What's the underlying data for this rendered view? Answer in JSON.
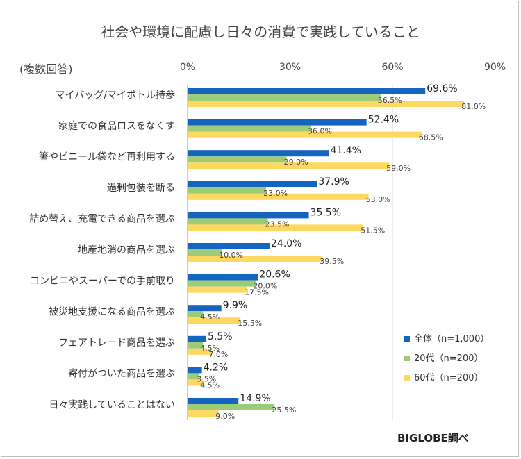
{
  "title": "社会や環境に配慮し日々の消費で実践していること",
  "note": "(複数回答)",
  "source": "BIGLOBE調べ",
  "colors": {
    "s0": "#1565c0",
    "s1": "#9ccc78",
    "s2": "#fdd962"
  },
  "chart_data": {
    "type": "bar",
    "orientation": "horizontal",
    "title": "社会や環境に配慮し日々の消費で実践していること",
    "xlim": [
      0,
      90
    ],
    "ticks": [
      "0%",
      "30%",
      "60%",
      "90%"
    ],
    "tick_values": [
      0,
      30,
      60,
      90
    ],
    "grid": true,
    "legend_position": "right",
    "categories": [
      "マイバッグ/マイボトル持参",
      "家庭での食品ロスをなくす",
      "箸やビニール袋など再利用する",
      "過剰包装を断る",
      "詰め替え、充電できる商品を選ぶ",
      "地産地消の商品を選ぶ",
      "コンビニやスーパーでの手前取り",
      "被災地支援になる商品を選ぶ",
      "フェアトレード商品を選ぶ",
      "寄付がついた商品を選ぶ",
      "日々実践していることはない"
    ],
    "series": [
      {
        "name": "全体（n=1,000）",
        "values": [
          69.6,
          52.4,
          41.4,
          37.9,
          35.5,
          24.0,
          20.6,
          9.9,
          5.5,
          4.2,
          14.9
        ],
        "labels": [
          "69.6%",
          "52.4%",
          "41.4%",
          "37.9%",
          "35.5%",
          "24.0%",
          "20.6%",
          "9.9%",
          "5.5%",
          "4.2%",
          "14.9%"
        ]
      },
      {
        "name": "20代（n=200）",
        "values": [
          56.5,
          36.0,
          29.0,
          23.0,
          23.5,
          10.0,
          20.0,
          4.5,
          4.5,
          3.5,
          25.5
        ],
        "labels": [
          "56.5%",
          "36.0%",
          "29.0%",
          "23.0%",
          "23.5%",
          "10.0%",
          "20.0%",
          "4.5%",
          "4.5%",
          "3.5%",
          "25.5%"
        ]
      },
      {
        "name": "60代（n=200）",
        "values": [
          81.0,
          68.5,
          59.0,
          53.0,
          51.5,
          39.5,
          17.5,
          15.5,
          7.0,
          4.5,
          9.0
        ],
        "labels": [
          "81.0%",
          "68.5%",
          "59.0%",
          "53.0%",
          "51.5%",
          "39.5%",
          "17.5%",
          "15.5%",
          "7.0%",
          "4.5%",
          "9.0%"
        ]
      }
    ]
  }
}
